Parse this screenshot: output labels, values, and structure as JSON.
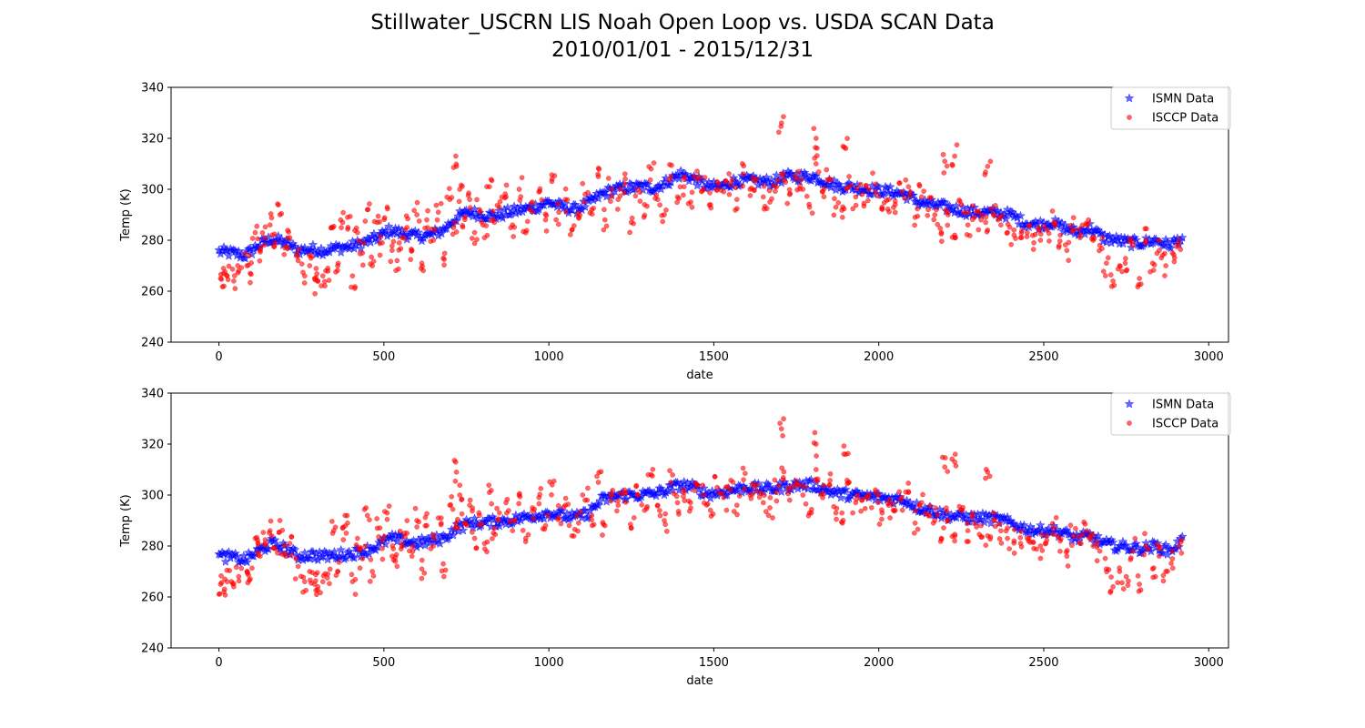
{
  "figure": {
    "title_line1": "Stillwater_USCRN LIS Noah Open Loop vs. USDA SCAN Data",
    "title_line2": "2010/01/01 - 2015/12/31"
  },
  "chart_data": [
    {
      "type": "scatter",
      "xlabel": "date",
      "ylabel": "Temp (K)",
      "xlim": [
        -145,
        3060
      ],
      "ylim": [
        240,
        340
      ],
      "xticks": [
        0,
        500,
        1000,
        1500,
        2000,
        2500,
        3000
      ],
      "yticks": [
        240,
        260,
        280,
        300,
        320,
        340
      ],
      "legend_position": "top-right",
      "series": [
        {
          "name": "ISMN Data",
          "marker": "star",
          "color": "#0000ff",
          "x": [
            0,
            40,
            80,
            120,
            160,
            200,
            240,
            280,
            320,
            360,
            400,
            440,
            480,
            520,
            560,
            600,
            640,
            680,
            720,
            760,
            800,
            840,
            880,
            920,
            960,
            1000,
            1040,
            1080,
            1120,
            1160,
            1200,
            1240,
            1280,
            1320,
            1360,
            1400,
            1440,
            1480,
            1520,
            1560,
            1600,
            1640,
            1680,
            1720,
            1760,
            1800,
            1840,
            1880,
            1920,
            1960,
            2000,
            2040,
            2080,
            2120,
            2160,
            2200,
            2240,
            2280,
            2320,
            2360,
            2400,
            2440,
            2480,
            2520,
            2560,
            2600,
            2640,
            2680,
            2720,
            2760,
            2800,
            2840,
            2880,
            2920
          ],
          "y": [
            275.5,
            275,
            274,
            278,
            280.5,
            279,
            276,
            276.5,
            276,
            277,
            277.5,
            279,
            281,
            284,
            282.5,
            281.5,
            282,
            284,
            289,
            291,
            290,
            289.5,
            291,
            292,
            293,
            295,
            293,
            292,
            294.5,
            298,
            300,
            300.5,
            301,
            300.5,
            303,
            306,
            304,
            301,
            301,
            303,
            303.5,
            303,
            303,
            305,
            305,
            305,
            303,
            301,
            301,
            300,
            299.5,
            299,
            298,
            295,
            294,
            293,
            292,
            291,
            291,
            290.5,
            290,
            287,
            286,
            287,
            285,
            283,
            285,
            281,
            280,
            279,
            279,
            280,
            278,
            281
          ]
        },
        {
          "name": "ISCCP Data",
          "marker": "circle",
          "color": "#ff0000",
          "x": [
            5,
            15,
            25,
            45,
            60,
            85,
            95,
            110,
            125,
            140,
            155,
            170,
            185,
            200,
            215,
            240,
            260,
            275,
            290,
            300,
            315,
            330,
            345,
            360,
            375,
            390,
            405,
            420,
            435,
            450,
            465,
            480,
            495,
            510,
            525,
            540,
            555,
            570,
            585,
            600,
            615,
            630,
            650,
            665,
            680,
            700,
            715,
            730,
            745,
            760,
            775,
            790,
            805,
            820,
            835,
            850,
            870,
            890,
            910,
            930,
            950,
            970,
            990,
            1010,
            1030,
            1050,
            1070,
            1090,
            1110,
            1130,
            1150,
            1170,
            1190,
            1210,
            1230,
            1250,
            1270,
            1290,
            1310,
            1330,
            1350,
            1370,
            1390,
            1410,
            1430,
            1450,
            1470,
            1490,
            1510,
            1530,
            1550,
            1570,
            1590,
            1610,
            1630,
            1650,
            1670,
            1690,
            1710,
            1730,
            1750,
            1770,
            1790,
            1810,
            1830,
            1850,
            1870,
            1890,
            1910,
            1930,
            1950,
            1970,
            1990,
            2010,
            2030,
            2050,
            2070,
            2090,
            2110,
            2130,
            2150,
            2170,
            2190,
            2210,
            2230,
            2250,
            2270,
            2290,
            2310,
            2330,
            2350,
            2370,
            2390,
            2410,
            2430,
            2450,
            2470,
            2490,
            2510,
            2530,
            2550,
            2570,
            2590,
            2610,
            2630,
            2650,
            2670,
            2690,
            2710,
            2730,
            2750,
            2770,
            2790,
            2810,
            2830,
            2850,
            2870,
            2890,
            2910,
            1705,
            1810,
            2200,
            1900,
            720,
            2230,
            2330
          ],
          "y": [
            265,
            262,
            266,
            264,
            268,
            270,
            267,
            283,
            276,
            281,
            286,
            279,
            290,
            277,
            281,
            272,
            266,
            270,
            265,
            264,
            266,
            269,
            285,
            270,
            287,
            289,
            266,
            283,
            275,
            292,
            270,
            287,
            279,
            293,
            276,
            272,
            281,
            285,
            276,
            290,
            271,
            288,
            280,
            291,
            273,
            296,
            287,
            300,
            289,
            296,
            283,
            292,
            281,
            301,
            287,
            293,
            297,
            286,
            300,
            283,
            295,
            299,
            288,
            304,
            291,
            296,
            284,
            289,
            298,
            292,
            305,
            288,
            300,
            296,
            302,
            287,
            300,
            294,
            308,
            296,
            290,
            305,
            297,
            301,
            295,
            304,
            300,
            294,
            303,
            299,
            302,
            296,
            306,
            300,
            304,
            297,
            295,
            301,
            306,
            298,
            304,
            300,
            293,
            310,
            299,
            304,
            293,
            289,
            305,
            297,
            298,
            300,
            302,
            293,
            296,
            294,
            299,
            301,
            289,
            297,
            292,
            290,
            283,
            290,
            282,
            294,
            286,
            289,
            288,
            284,
            290,
            286,
            283,
            282,
            281,
            283,
            279,
            280,
            284,
            287,
            282,
            276,
            284,
            281,
            286,
            280,
            278,
            271,
            264,
            270,
            268,
            278,
            265,
            280,
            271,
            276,
            270,
            275,
            280,
            326,
            320,
            311,
            316,
            309,
            313,
            309
          ]
        }
      ]
    },
    {
      "type": "scatter",
      "xlabel": "date",
      "ylabel": "Temp (K)",
      "xlim": [
        -145,
        3060
      ],
      "ylim": [
        240,
        340
      ],
      "xticks": [
        0,
        500,
        1000,
        1500,
        2000,
        2500,
        3000
      ],
      "yticks": [
        240,
        260,
        280,
        300,
        320,
        340
      ],
      "legend_position": "top-right",
      "series": [
        {
          "name": "ISMN Data",
          "marker": "star",
          "color": "#0000ff",
          "x": [
            0,
            40,
            80,
            120,
            160,
            200,
            240,
            280,
            320,
            360,
            400,
            440,
            480,
            520,
            560,
            600,
            640,
            680,
            720,
            760,
            800,
            840,
            880,
            920,
            960,
            1000,
            1040,
            1080,
            1120,
            1160,
            1200,
            1240,
            1280,
            1320,
            1360,
            1400,
            1440,
            1480,
            1520,
            1560,
            1600,
            1640,
            1680,
            1720,
            1760,
            1800,
            1840,
            1880,
            1920,
            1960,
            2000,
            2040,
            2080,
            2120,
            2160,
            2200,
            2240,
            2280,
            2320,
            2360,
            2400,
            2440,
            2480,
            2520,
            2560,
            2600,
            2640,
            2680,
            2720,
            2760,
            2800,
            2840,
            2880,
            2920
          ],
          "y": [
            276,
            275.5,
            274.5,
            278,
            281,
            279,
            276,
            276.5,
            276,
            276.5,
            277,
            278,
            280,
            283,
            282,
            281,
            282,
            283,
            287,
            289,
            289,
            289.5,
            290,
            291,
            292,
            293,
            292,
            291,
            293,
            298,
            299.5,
            300,
            300,
            300.5,
            302,
            304,
            303,
            300.5,
            301,
            302,
            303,
            302.5,
            302.5,
            303.5,
            304,
            304,
            302,
            300.5,
            300,
            299.5,
            299,
            298.5,
            298,
            295,
            294,
            292,
            291.5,
            291,
            291,
            290.5,
            289,
            287,
            286,
            286.5,
            285,
            283,
            284,
            281,
            280,
            279.5,
            279,
            280,
            278,
            282
          ]
        },
        {
          "name": "ISCCP Data",
          "marker": "circle",
          "color": "#ff0000",
          "x": [
            5,
            15,
            25,
            45,
            60,
            85,
            95,
            110,
            125,
            140,
            155,
            170,
            185,
            200,
            215,
            240,
            260,
            275,
            290,
            300,
            315,
            330,
            345,
            360,
            375,
            390,
            405,
            420,
            435,
            450,
            465,
            480,
            495,
            510,
            525,
            540,
            555,
            570,
            585,
            600,
            615,
            630,
            650,
            665,
            680,
            700,
            715,
            730,
            745,
            760,
            775,
            790,
            805,
            820,
            835,
            850,
            870,
            890,
            910,
            930,
            950,
            970,
            990,
            1010,
            1030,
            1050,
            1070,
            1090,
            1110,
            1130,
            1150,
            1170,
            1190,
            1210,
            1230,
            1250,
            1270,
            1290,
            1310,
            1330,
            1350,
            1370,
            1390,
            1410,
            1430,
            1450,
            1470,
            1490,
            1510,
            1530,
            1550,
            1570,
            1590,
            1610,
            1630,
            1650,
            1670,
            1690,
            1710,
            1730,
            1750,
            1770,
            1790,
            1810,
            1830,
            1850,
            1870,
            1890,
            1910,
            1930,
            1950,
            1970,
            1990,
            2010,
            2030,
            2050,
            2070,
            2090,
            2110,
            2130,
            2150,
            2170,
            2190,
            2210,
            2230,
            2250,
            2270,
            2290,
            2310,
            2330,
            2350,
            2370,
            2390,
            2410,
            2430,
            2450,
            2470,
            2490,
            2510,
            2530,
            2550,
            2570,
            2590,
            2610,
            2630,
            2650,
            2670,
            2690,
            2710,
            2730,
            2750,
            2770,
            2790,
            2810,
            2830,
            2850,
            2870,
            2890,
            2910,
            1705,
            1810,
            2200,
            1900,
            720,
            2230,
            2330
          ],
          "y": [
            265,
            262,
            266,
            264,
            268,
            270,
            267,
            283,
            276,
            281,
            286,
            279,
            290,
            277,
            281,
            272,
            266,
            270,
            265,
            264,
            266,
            269,
            285,
            270,
            287,
            289,
            266,
            283,
            275,
            292,
            270,
            287,
            279,
            293,
            276,
            272,
            281,
            285,
            276,
            290,
            271,
            288,
            280,
            291,
            273,
            296,
            287,
            300,
            289,
            296,
            283,
            292,
            281,
            301,
            287,
            293,
            297,
            286,
            300,
            283,
            295,
            299,
            288,
            304,
            291,
            296,
            284,
            289,
            298,
            292,
            305,
            288,
            300,
            296,
            302,
            287,
            300,
            294,
            308,
            296,
            290,
            305,
            297,
            301,
            295,
            304,
            300,
            294,
            303,
            299,
            302,
            296,
            306,
            300,
            304,
            297,
            295,
            301,
            306,
            298,
            304,
            300,
            293,
            310,
            299,
            304,
            293,
            289,
            305,
            297,
            298,
            300,
            302,
            293,
            296,
            294,
            299,
            301,
            289,
            297,
            292,
            290,
            283,
            290,
            282,
            294,
            286,
            289,
            288,
            284,
            290,
            286,
            283,
            282,
            281,
            283,
            279,
            280,
            284,
            287,
            282,
            276,
            284,
            281,
            286,
            280,
            278,
            271,
            264,
            270,
            268,
            278,
            265,
            280,
            271,
            276,
            270,
            275,
            280,
            326,
            320,
            311,
            316,
            309,
            313,
            309
          ]
        }
      ]
    }
  ]
}
